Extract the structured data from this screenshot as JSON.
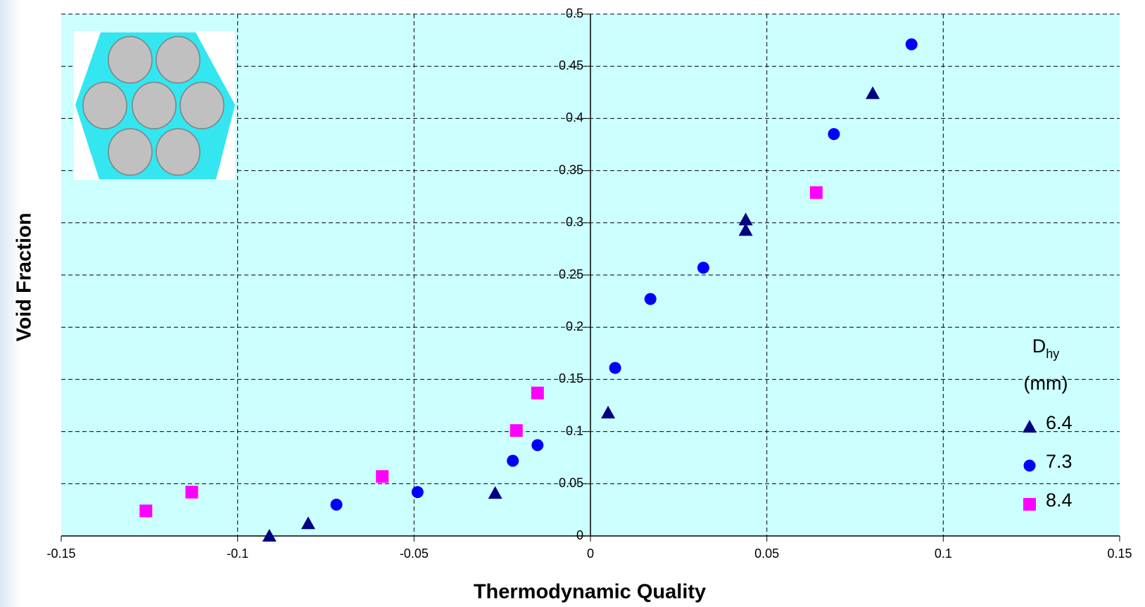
{
  "chart_data": {
    "type": "scatter",
    "x_label": "Thermodynamic Quality",
    "y_label": "Void Fraction",
    "legend_title": "D",
    "legend_title_sub": "hy",
    "legend_title_unit": "(mm)",
    "xlim": [
      -0.15,
      0.15
    ],
    "xticks": [
      -0.15,
      -0.1,
      -0.05,
      0,
      0.05,
      0.1,
      0.15
    ],
    "ylim": [
      0,
      0.5
    ],
    "yticks": [
      0,
      0.05,
      0.1,
      0.15,
      0.2,
      0.25,
      0.3,
      0.35,
      0.4,
      0.45,
      0.5
    ],
    "grid": true,
    "legend_position": "right",
    "series": [
      {
        "name": "6.4",
        "color": "#000080",
        "marker": "triangle",
        "x": [
          -0.091,
          -0.08,
          -0.027,
          0.005,
          0.044,
          0.044,
          0.08
        ],
        "values": [
          0,
          0.012,
          0.041,
          0.118,
          0.303,
          0.293,
          0.424
        ]
      },
      {
        "name": "7.3",
        "color": "#0000ff",
        "marker": "circle",
        "x": [
          -0.072,
          -0.049,
          -0.022,
          -0.015,
          0.007,
          0.017,
          0.032,
          0.069,
          0.091
        ],
        "values": [
          0.03,
          0.042,
          0.072,
          0.087,
          0.161,
          0.227,
          0.257,
          0.385,
          0.471
        ]
      },
      {
        "name": "8.4",
        "color": "#ff00ff",
        "marker": "square",
        "x": [
          -0.126,
          -0.113,
          -0.059,
          -0.021,
          -0.015,
          0.064
        ],
        "values": [
          0.024,
          0.042,
          0.057,
          0.101,
          0.137,
          0.329
        ]
      }
    ]
  }
}
